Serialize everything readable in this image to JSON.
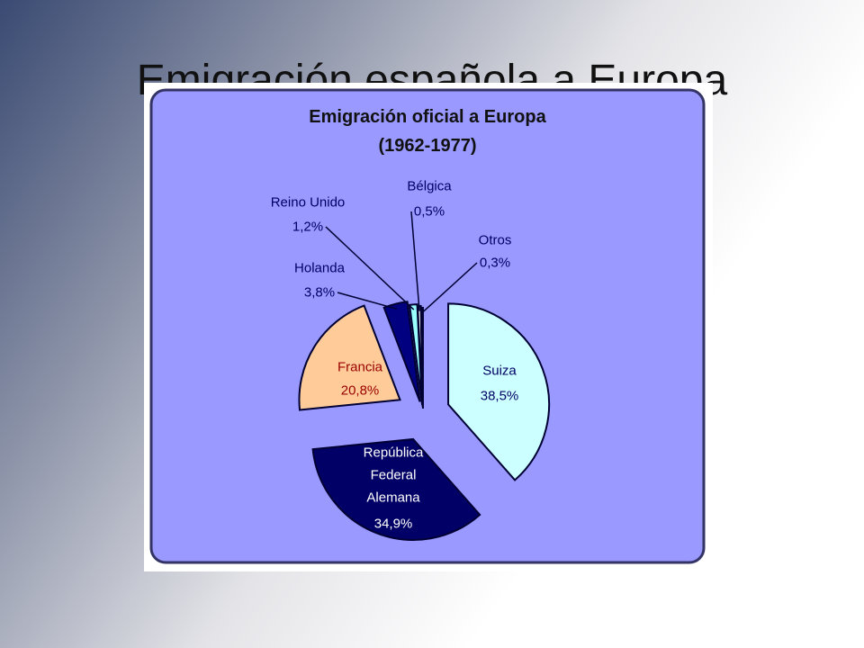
{
  "slide_title": "Emigración española a Europa",
  "chart_data": {
    "type": "pie",
    "title": "Emigración oficial a Europa",
    "subtitle": "(1962-1977)",
    "categories": [
      "Suiza",
      "República Federal Alemana",
      "Francia",
      "Holanda",
      "Reino Unido",
      "Bélgica",
      "Otros"
    ],
    "values": [
      38.5,
      34.9,
      20.8,
      3.8,
      1.2,
      0.5,
      0.3
    ],
    "value_labels": [
      "38,5%",
      "34,9%",
      "20,8%",
      "3,8%",
      "1,2%",
      "0,5%",
      "0,3%"
    ],
    "colors": [
      "#ccffff",
      "#000066",
      "#ffcc99",
      "#000080",
      "#99ffff",
      "#ffffff",
      "#000066"
    ]
  }
}
